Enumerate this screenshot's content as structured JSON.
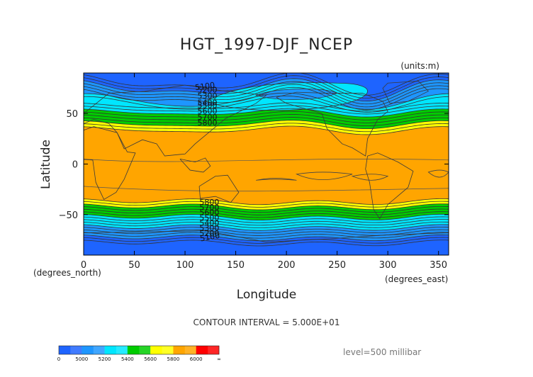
{
  "chart_data": {
    "type": "contour",
    "title": "HGT_1997-DJF_NCEP",
    "units_label": "(units:m)",
    "xlabel": "Longitude",
    "ylabel": "Latitude",
    "x_unit_label": "(degrees_east)",
    "y_unit_label": "(degrees_north)",
    "xlim": [
      0,
      360
    ],
    "ylim": [
      -90,
      90
    ],
    "x_ticks": [
      0,
      50,
      100,
      150,
      200,
      250,
      300,
      350
    ],
    "y_ticks": [
      -50,
      0,
      50
    ],
    "contour_interval_text": "CONTOUR INTERVAL = 5.000E+01",
    "contour_interval": 50,
    "level_text": "level=500 millibar",
    "colorbar": {
      "labels": [
        "0",
        "5000",
        "5200",
        "5400",
        "5600",
        "5800",
        "6000",
        "∞"
      ],
      "colors": [
        "#1e64ff",
        "#1e96ff",
        "#00e6ff",
        "#00cc00",
        "#ffff00",
        "#ffa500",
        "#ff0000"
      ],
      "segments_per_bin": 2
    },
    "contour_labels": [
      "5100",
      "5200",
      "5300",
      "5400",
      "5500",
      "5600",
      "5700",
      "5800",
      "5100",
      "5200",
      "5300",
      "5400",
      "5500",
      "5600",
      "5700",
      "5800"
    ],
    "grid": false,
    "background_map": "world coastlines"
  }
}
